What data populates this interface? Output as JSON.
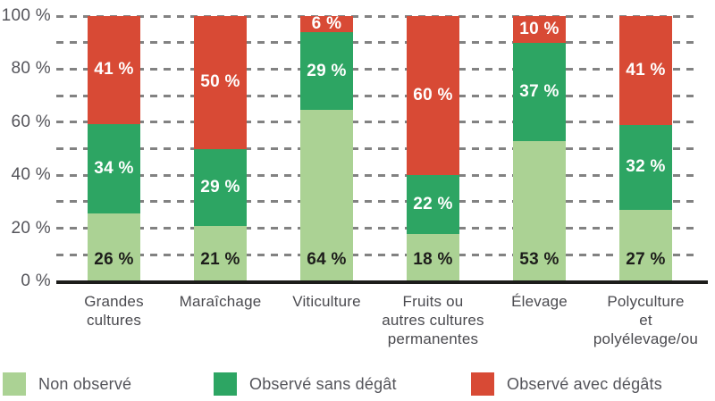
{
  "chart_data": {
    "type": "bar",
    "stacked": true,
    "title": "",
    "categories": [
      "Grandes\ncultures",
      "Maraîchage",
      "Viticulture",
      "Fruits ou\nautres cultures\npermanentes",
      "Élevage",
      "Polyculture\net\npolyélevage/ou"
    ],
    "series": [
      {
        "name": "Non observé",
        "color": "#abd294",
        "label_color": "#1d1d1b",
        "values": [
          26,
          21,
          64,
          18,
          53,
          27
        ]
      },
      {
        "name": "Observé sans dégât",
        "color": "#2da563",
        "label_color": "#ffffff",
        "values": [
          34,
          29,
          29,
          22,
          37,
          32
        ]
      },
      {
        "name": "Observé avec dégâts",
        "color": "#d84a35",
        "label_color": "#ffffff",
        "values": [
          41,
          50,
          6,
          60,
          10,
          41
        ]
      }
    ],
    "value_suffix": " %",
    "y_ticks": [
      0,
      20,
      40,
      60,
      80,
      100
    ],
    "y_tick_suffix": " %",
    "ylim": [
      0,
      100
    ],
    "gridlines_every": 10,
    "grid_style": "dashed",
    "legend_position": "bottom"
  },
  "colors": {
    "background": "#ffffff",
    "grid": "#828282",
    "axis": "#1d1d1b",
    "tick_text": "#54545a",
    "category_text": "#4a4a4f",
    "legend_text": "#54545a"
  }
}
